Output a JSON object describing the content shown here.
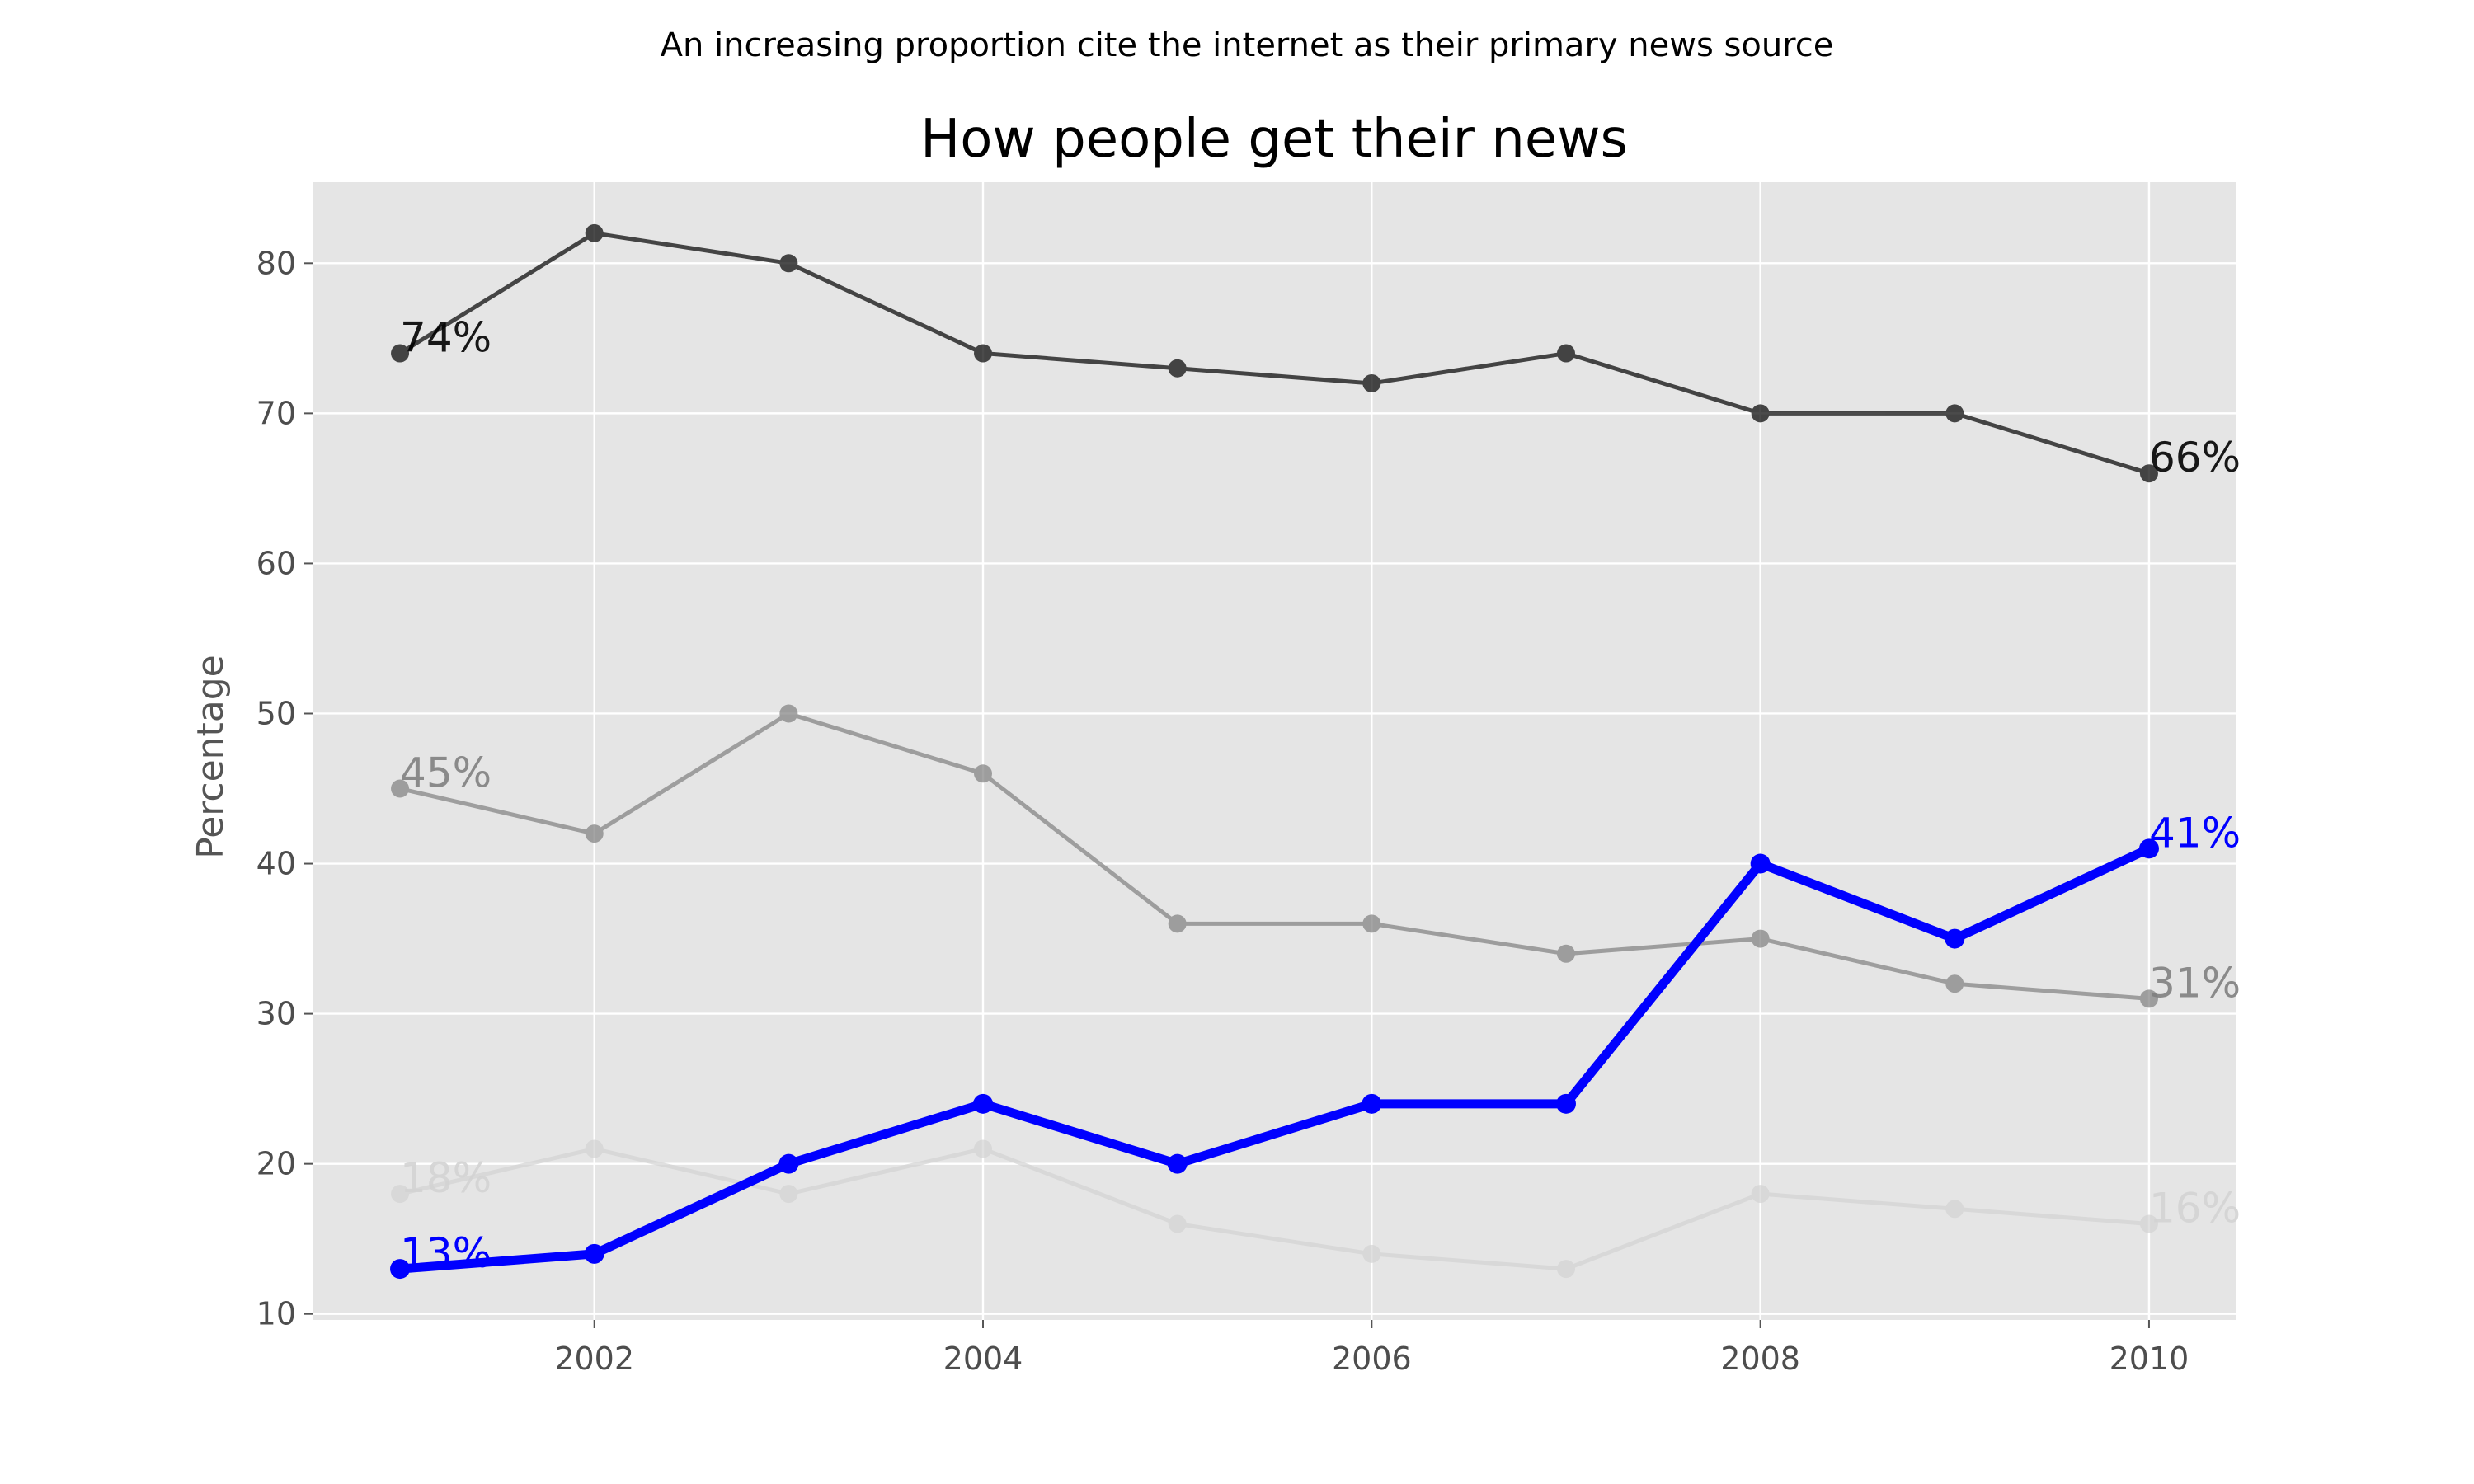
{
  "chart_data": {
    "type": "line",
    "suptitle": "An increasing proportion cite the internet as their primary news source",
    "title": "How people get their news",
    "xlabel": "",
    "ylabel": "Percentage",
    "x": [
      2001,
      2002,
      2003,
      2004,
      2005,
      2006,
      2007,
      2008,
      2009,
      2010
    ],
    "xlim": [
      2000.55,
      2010.45
    ],
    "ylim": [
      9.6,
      85.4
    ],
    "xticks": [
      2002,
      2004,
      2006,
      2008,
      2010
    ],
    "yticks": [
      10,
      20,
      30,
      40,
      50,
      60,
      70,
      80
    ],
    "grid": true,
    "legend": "none",
    "background": "#e5e5e5",
    "series": [
      {
        "values": [
          74,
          82,
          80,
          74,
          73,
          72,
          74,
          70,
          70,
          66
        ],
        "color": "#000000",
        "opacity": 0.7,
        "emphasis": false,
        "start_label": "74%",
        "end_label": "66%"
      },
      {
        "values": [
          45,
          42,
          50,
          46,
          36,
          36,
          34,
          35,
          32,
          31
        ],
        "color": "#808080",
        "opacity": 0.7,
        "emphasis": false,
        "start_label": "45%",
        "end_label": "31%"
      },
      {
        "values": [
          18,
          21,
          18,
          21,
          16,
          14,
          13,
          18,
          17,
          16
        ],
        "color": "#d3d3d3",
        "opacity": 0.7,
        "emphasis": false,
        "start_label": "18%",
        "end_label": "16%"
      },
      {
        "values": [
          13,
          14,
          20,
          24,
          20,
          24,
          24,
          40,
          35,
          41
        ],
        "color": "#0000ff",
        "opacity": 1,
        "emphasis": true,
        "start_label": "13%",
        "end_label": "41%"
      }
    ]
  }
}
